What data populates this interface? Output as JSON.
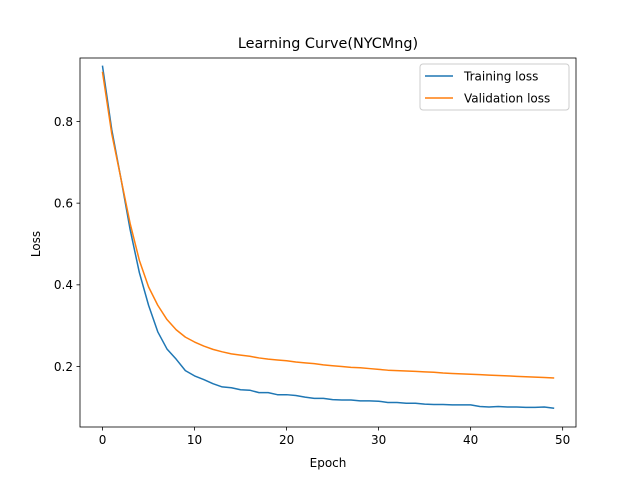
{
  "chart_data": {
    "type": "line",
    "title": "Learning Curve(NYCMng)",
    "xlabel": "Epoch",
    "ylabel": "Loss",
    "xlim": [
      -2.45,
      51.45
    ],
    "ylim": [
      0.0519,
      0.9554
    ],
    "xticks": [
      0,
      10,
      20,
      30,
      40,
      50
    ],
    "yticks": [
      0.2,
      0.4,
      0.6,
      0.8
    ],
    "xtick_labels": [
      "0",
      "10",
      "20",
      "30",
      "40",
      "50"
    ],
    "ytick_labels": [
      "0.2",
      "0.4",
      "0.6",
      "0.8"
    ],
    "grid": false,
    "legend_position": "upper right",
    "x": [
      0,
      1,
      2,
      3,
      4,
      5,
      6,
      7,
      8,
      9,
      10,
      11,
      12,
      13,
      14,
      15,
      16,
      17,
      18,
      19,
      20,
      21,
      22,
      23,
      24,
      25,
      26,
      27,
      28,
      29,
      30,
      31,
      32,
      33,
      34,
      35,
      36,
      37,
      38,
      39,
      40,
      41,
      42,
      43,
      44,
      45,
      46,
      47,
      48,
      49
    ],
    "series": [
      {
        "name": "Training loss",
        "color": "#1f77b4",
        "values": [
          0.935,
          0.78,
          0.66,
          0.535,
          0.43,
          0.35,
          0.285,
          0.243,
          0.218,
          0.19,
          0.177,
          0.168,
          0.158,
          0.15,
          0.148,
          0.143,
          0.142,
          0.136,
          0.136,
          0.131,
          0.131,
          0.129,
          0.125,
          0.122,
          0.122,
          0.119,
          0.118,
          0.118,
          0.116,
          0.116,
          0.115,
          0.112,
          0.112,
          0.11,
          0.11,
          0.108,
          0.107,
          0.107,
          0.106,
          0.106,
          0.106,
          0.102,
          0.101,
          0.102,
          0.101,
          0.101,
          0.1,
          0.1,
          0.101,
          0.098
        ]
      },
      {
        "name": "Validation loss",
        "color": "#ff7f0e",
        "values": [
          0.92,
          0.77,
          0.66,
          0.55,
          0.46,
          0.395,
          0.35,
          0.315,
          0.29,
          0.272,
          0.26,
          0.25,
          0.242,
          0.236,
          0.231,
          0.228,
          0.225,
          0.221,
          0.218,
          0.216,
          0.214,
          0.211,
          0.209,
          0.207,
          0.204,
          0.202,
          0.2,
          0.198,
          0.197,
          0.195,
          0.193,
          0.191,
          0.19,
          0.189,
          0.188,
          0.187,
          0.186,
          0.184,
          0.183,
          0.182,
          0.181,
          0.18,
          0.179,
          0.178,
          0.177,
          0.176,
          0.175,
          0.174,
          0.173,
          0.172
        ]
      }
    ]
  }
}
